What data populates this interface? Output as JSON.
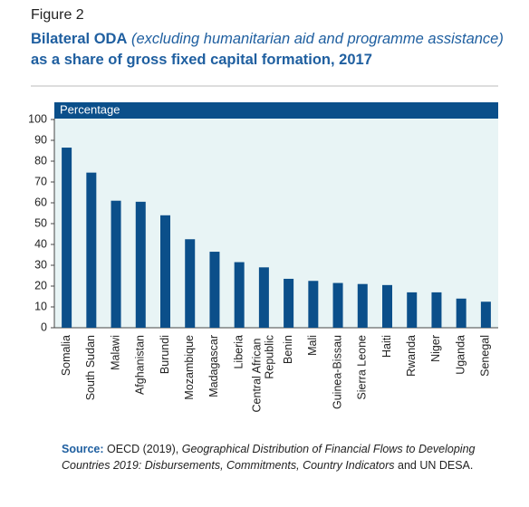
{
  "figure_label": "Figure 2",
  "chart_data": {
    "type": "bar",
    "title": [
      {
        "text": "Bilateral ODA",
        "style": "bold"
      },
      {
        "text": "(excluding humanitarian aid and programme assistance)",
        "style": "italic"
      },
      {
        "text": "as a share of gross fixed capital formation, 2017",
        "style": "bold"
      }
    ],
    "y_label": "Percentage",
    "categories": [
      "Somalia",
      "South Sudan",
      "Malawi",
      "Afghanistan",
      "Burundi",
      "Mozambique",
      "Madagascar",
      "Liberia",
      "Central African Republic",
      "Benin",
      "Mali",
      "Guinea-Bissau",
      "Sierra Leone",
      "Haiti",
      "Rwanda",
      "Niger",
      "Uganda",
      "Senegal"
    ],
    "values": [
      86.5,
      74.5,
      61,
      60.5,
      54,
      42.5,
      36.5,
      31.5,
      29,
      23.5,
      22.5,
      21.5,
      21,
      20.5,
      17,
      17,
      14,
      12.5
    ],
    "color": "#0b4f8a",
    "ylim": [
      0,
      100
    ],
    "yticks": [
      0,
      10,
      20,
      30,
      40,
      50,
      60,
      70,
      80,
      90,
      100
    ]
  },
  "source": {
    "label": "Source:",
    "parts": [
      {
        "text": "OECD (2019),",
        "style": "normal"
      },
      {
        "text": "Geographical Distribution of Financial Flows to Developing Countries 2019: Disbursements, Commitments, Country Indicators",
        "style": "italic"
      },
      {
        "text": "and UN DESA.",
        "style": "normal"
      }
    ]
  }
}
